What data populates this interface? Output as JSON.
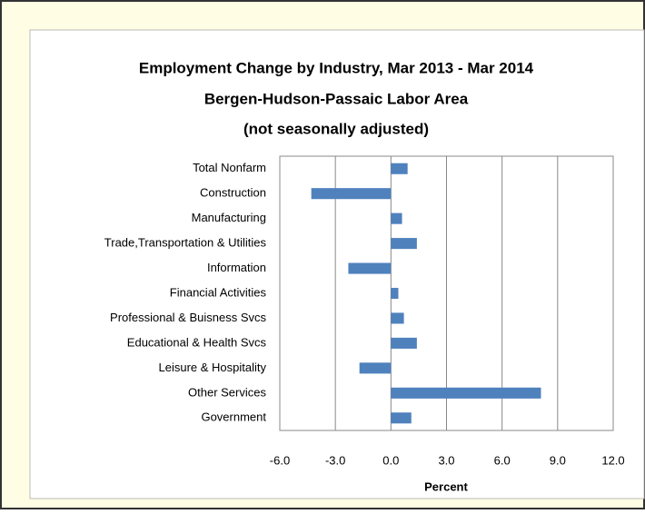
{
  "chart_data": {
    "type": "bar",
    "orientation": "horizontal",
    "title_lines": [
      "Employment Change by Industry, Mar 2013 - Mar 2014",
      "Bergen-Hudson-Passaic Labor Area",
      "(not seasonally adjusted)"
    ],
    "x_label": "Percent",
    "categories": [
      "Total Nonfarm",
      "Construction",
      "Manufacturing",
      "Trade,Transportation & Utilities",
      "Information",
      "Financial Activities",
      "Professional & Buisness Svcs",
      "Educational & Health Svcs",
      "Leisure & Hospitality",
      "Other Services",
      "Government"
    ],
    "values": [
      0.9,
      -4.3,
      0.6,
      1.4,
      -2.3,
      0.4,
      0.7,
      1.4,
      -1.7,
      8.1,
      1.1
    ],
    "color": "#4f81bd",
    "xlim": [
      -6,
      12
    ],
    "xticks": [
      {
        "value": -6,
        "label": "-6.0"
      },
      {
        "value": -3,
        "label": "-3.0"
      },
      {
        "value": 0,
        "label": "0.0"
      },
      {
        "value": 3,
        "label": "3.0"
      },
      {
        "value": 6,
        "label": "6.0"
      },
      {
        "value": 9,
        "label": "9.0"
      },
      {
        "value": 12,
        "label": "12.0"
      }
    ],
    "grid": true
  }
}
